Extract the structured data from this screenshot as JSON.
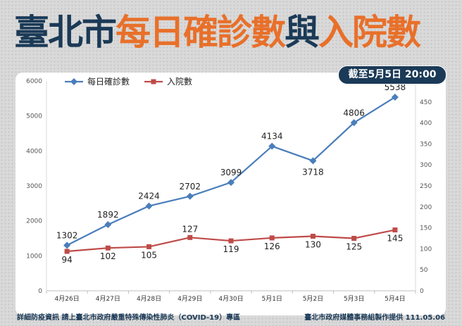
{
  "title": {
    "part1": "臺北市",
    "part2": "每日確診數",
    "part3": "與",
    "part4": "入院數"
  },
  "badge": "截至5月5日 20:00",
  "footer": {
    "left": "詳細防疫資訊 請上臺北市政府嚴重特殊傳染性肺炎（COVID-19）專區",
    "right": "臺北市政府媒體事務組製作提供 111.05.06"
  },
  "chart_data": {
    "type": "line",
    "categories": [
      "4月26日",
      "4月27日",
      "4月28日",
      "4月29日",
      "4月30日",
      "5月1日",
      "5月2日",
      "5月3日",
      "5月4日"
    ],
    "series": [
      {
        "name": "每日確診數",
        "axis": "left",
        "color": "#4a7ebb",
        "marker": "diamond",
        "values": [
          1302,
          1892,
          2424,
          2702,
          3099,
          4134,
          3718,
          4806,
          5538
        ]
      },
      {
        "name": "入院數",
        "axis": "right",
        "color": "#be4b48",
        "marker": "square",
        "values": [
          94,
          102,
          105,
          127,
          119,
          126,
          130,
          125,
          145
        ]
      }
    ],
    "ylim_left": [
      0,
      6000
    ],
    "yticks_left": [
      0,
      1000,
      2000,
      3000,
      4000,
      5000,
      6000
    ],
    "ylim_right": [
      0,
      500
    ],
    "yticks_right": [
      0,
      50,
      100,
      150,
      200,
      250,
      300,
      350,
      400,
      450,
      500
    ],
    "grid": false,
    "legend": "top-left"
  }
}
